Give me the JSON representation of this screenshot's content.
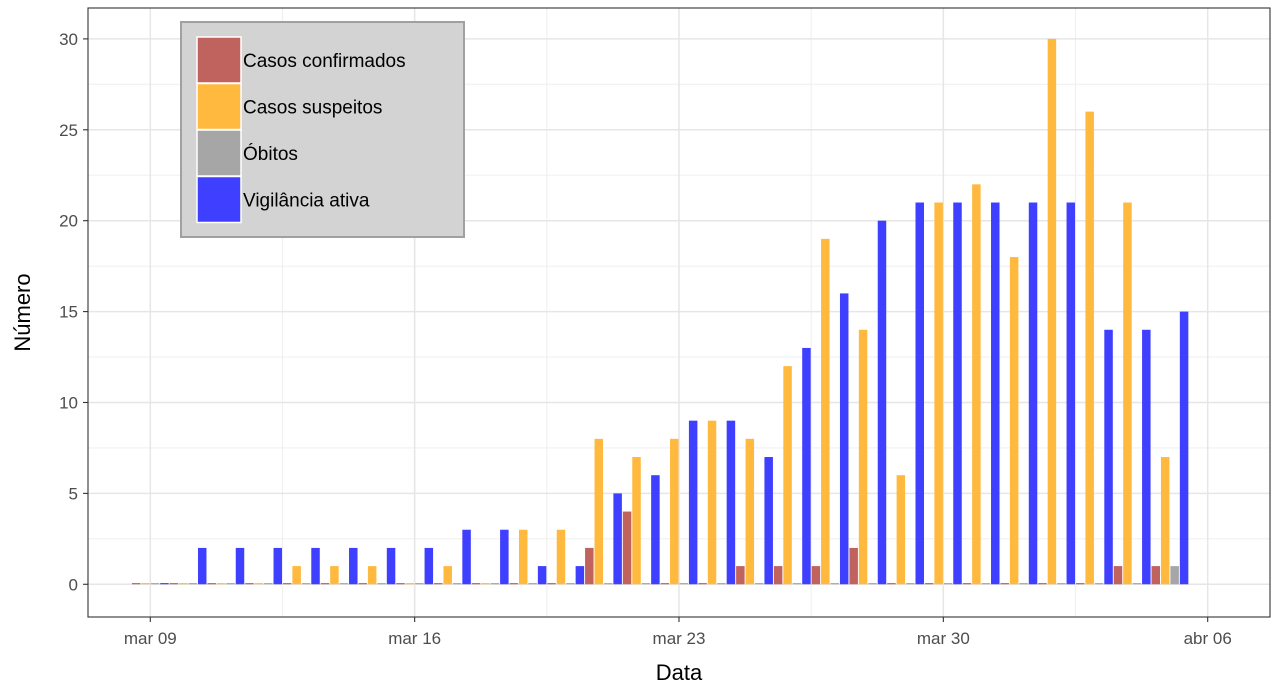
{
  "chart_data": {
    "type": "bar",
    "xlabel": "Data",
    "ylabel": "Número",
    "ylim": [
      -1.8,
      31.7
    ],
    "y_ticks": [
      0,
      5,
      10,
      15,
      20,
      25,
      30
    ],
    "x_range_days": [
      -1.65,
      29.65
    ],
    "x_ticks": [
      {
        "label": "mar 09",
        "date": "2020-03-09"
      },
      {
        "label": "mar 16",
        "date": "2020-03-16"
      },
      {
        "label": "mar 23",
        "date": "2020-03-23"
      },
      {
        "label": "mar 30",
        "date": "2020-03-30"
      },
      {
        "label": "abr 06",
        "date": "2020-04-06"
      }
    ],
    "grid": true,
    "legend_position": "top-left",
    "series": [
      {
        "name": "Casos confirmados",
        "color": "#c0625e",
        "points": [
          [
            "2020-03-09",
            0
          ],
          [
            "2020-03-10",
            0
          ],
          [
            "2020-03-11",
            0
          ],
          [
            "2020-03-12",
            0
          ],
          [
            "2020-03-13",
            0
          ],
          [
            "2020-03-14",
            0
          ],
          [
            "2020-03-15",
            0
          ],
          [
            "2020-03-16",
            0
          ],
          [
            "2020-03-17",
            0
          ],
          [
            "2020-03-18",
            0
          ],
          [
            "2020-03-19",
            0
          ],
          [
            "2020-03-20",
            0
          ],
          [
            "2020-03-21",
            2
          ],
          [
            "2020-03-22",
            4
          ],
          [
            "2020-03-23",
            0
          ],
          [
            "2020-03-24",
            0
          ],
          [
            "2020-03-25",
            1
          ],
          [
            "2020-03-26",
            1
          ],
          [
            "2020-03-27",
            1
          ],
          [
            "2020-03-28",
            2
          ],
          [
            "2020-03-29",
            0
          ],
          [
            "2020-03-30",
            0
          ],
          [
            "2020-03-31",
            0
          ],
          [
            "2020-04-01",
            0
          ],
          [
            "2020-04-02",
            0
          ],
          [
            "2020-04-03",
            0
          ],
          [
            "2020-04-04",
            1
          ],
          [
            "2020-04-05",
            1
          ]
        ]
      },
      {
        "name": "Casos suspeitos",
        "color": "#ffb93f",
        "points": [
          [
            "2020-03-09",
            0
          ],
          [
            "2020-03-10",
            0
          ],
          [
            "2020-03-11",
            0
          ],
          [
            "2020-03-12",
            0
          ],
          [
            "2020-03-13",
            1
          ],
          [
            "2020-03-14",
            1
          ],
          [
            "2020-03-15",
            1
          ],
          [
            "2020-03-16",
            0
          ],
          [
            "2020-03-17",
            1
          ],
          [
            "2020-03-18",
            0
          ],
          [
            "2020-03-19",
            3
          ],
          [
            "2020-03-20",
            3
          ],
          [
            "2020-03-21",
            8
          ],
          [
            "2020-03-22",
            7
          ],
          [
            "2020-03-23",
            8
          ],
          [
            "2020-03-24",
            9
          ],
          [
            "2020-03-25",
            8
          ],
          [
            "2020-03-26",
            12
          ],
          [
            "2020-03-27",
            19
          ],
          [
            "2020-03-28",
            14
          ],
          [
            "2020-03-29",
            6
          ],
          [
            "2020-03-30",
            21
          ],
          [
            "2020-03-31",
            22
          ],
          [
            "2020-04-01",
            18
          ],
          [
            "2020-04-02",
            30
          ],
          [
            "2020-04-03",
            26
          ],
          [
            "2020-04-04",
            21
          ],
          [
            "2020-04-05",
            7
          ]
        ]
      },
      {
        "name": "Óbitos",
        "color": "#a6a6a6",
        "points": [
          [
            "2020-03-09",
            0
          ],
          [
            "2020-03-10",
            0
          ],
          [
            "2020-03-11",
            0
          ],
          [
            "2020-03-12",
            0
          ],
          [
            "2020-03-13",
            0
          ],
          [
            "2020-03-14",
            0
          ],
          [
            "2020-03-15",
            0
          ],
          [
            "2020-03-16",
            0
          ],
          [
            "2020-03-17",
            0
          ],
          [
            "2020-03-18",
            0
          ],
          [
            "2020-03-19",
            0
          ],
          [
            "2020-03-20",
            0
          ],
          [
            "2020-03-21",
            0
          ],
          [
            "2020-03-22",
            0
          ],
          [
            "2020-03-23",
            0
          ],
          [
            "2020-03-24",
            0
          ],
          [
            "2020-03-25",
            0
          ],
          [
            "2020-03-26",
            0
          ],
          [
            "2020-03-27",
            0
          ],
          [
            "2020-03-28",
            0
          ],
          [
            "2020-03-29",
            0
          ],
          [
            "2020-03-30",
            0
          ],
          [
            "2020-03-31",
            0
          ],
          [
            "2020-04-01",
            0
          ],
          [
            "2020-04-02",
            0
          ],
          [
            "2020-04-03",
            0
          ],
          [
            "2020-04-04",
            0
          ],
          [
            "2020-04-05",
            1
          ]
        ]
      },
      {
        "name": "Vigilância ativa",
        "color": "#3f3fff",
        "points": [
          [
            "2020-03-09",
            0
          ],
          [
            "2020-03-10",
            2
          ],
          [
            "2020-03-11",
            2
          ],
          [
            "2020-03-12",
            2
          ],
          [
            "2020-03-13",
            2
          ],
          [
            "2020-03-14",
            2
          ],
          [
            "2020-03-15",
            2
          ],
          [
            "2020-03-16",
            2
          ],
          [
            "2020-03-17",
            3
          ],
          [
            "2020-03-18",
            3
          ],
          [
            "2020-03-19",
            1
          ],
          [
            "2020-03-20",
            1
          ],
          [
            "2020-03-21",
            5
          ],
          [
            "2020-03-22",
            6
          ],
          [
            "2020-03-23",
            9
          ],
          [
            "2020-03-24",
            9
          ],
          [
            "2020-03-25",
            7
          ],
          [
            "2020-03-26",
            13
          ],
          [
            "2020-03-27",
            16
          ],
          [
            "2020-03-28",
            20
          ],
          [
            "2020-03-29",
            21
          ],
          [
            "2020-03-30",
            21
          ],
          [
            "2020-03-31",
            21
          ],
          [
            "2020-04-01",
            21
          ],
          [
            "2020-04-02",
            21
          ],
          [
            "2020-04-03",
            14
          ],
          [
            "2020-04-04",
            14
          ],
          [
            "2020-04-05",
            15
          ]
        ]
      }
    ]
  }
}
